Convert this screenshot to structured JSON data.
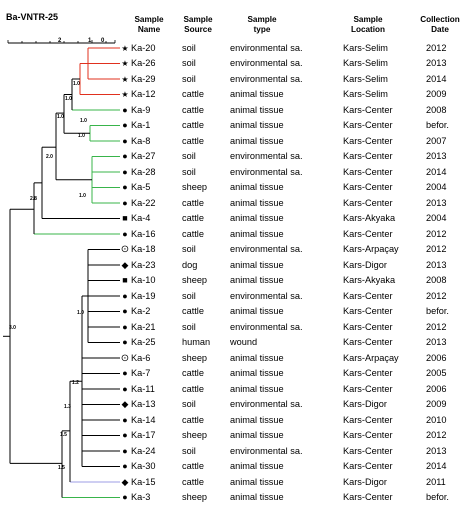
{
  "title": "Ba-VNTR-25",
  "scale": {
    "left": "2",
    "mid1": "1",
    "mid2": "0"
  },
  "headers": {
    "name": [
      "Sample",
      "Name"
    ],
    "source": [
      "Sample",
      "Source"
    ],
    "type": [
      "Sample",
      "type"
    ],
    "location": [
      "Sample",
      "Location"
    ],
    "date": [
      "Collection",
      "Date"
    ]
  },
  "node_labels": [
    "1.0",
    "1.0",
    "1.0",
    "1.0",
    "1.0",
    "1.0",
    "2.0",
    "2.8",
    "3.0",
    "1.0",
    "1.2",
    "1.3",
    "1.5",
    "1.5"
  ],
  "rows": [
    {
      "name": "Ka-20",
      "source": "soil",
      "type": "environmental sa.",
      "location": "Kars-Selim",
      "date": "2012",
      "marker": "star"
    },
    {
      "name": "Ka-26",
      "source": "soil",
      "type": "environmental sa.",
      "location": "Kars-Selim",
      "date": "2013",
      "marker": "star"
    },
    {
      "name": "Ka-29",
      "source": "soil",
      "type": "environmental sa.",
      "location": "Kars-Selim",
      "date": "2014",
      "marker": "star"
    },
    {
      "name": "Ka-12",
      "source": "cattle",
      "type": "animal tissue",
      "location": "Kars-Selim",
      "date": "2009",
      "marker": "star"
    },
    {
      "name": "Ka-9",
      "source": "cattle",
      "type": "animal tissue",
      "location": "Kars-Center",
      "date": "2008",
      "marker": "circle"
    },
    {
      "name": "Ka-1",
      "source": "cattle",
      "type": "animal tissue",
      "location": "Kars-Center",
      "date": "befor.",
      "marker": "circle"
    },
    {
      "name": "Ka-8",
      "source": "cattle",
      "type": "animal tissue",
      "location": "Kars-Center",
      "date": "2007",
      "marker": "circle"
    },
    {
      "name": "Ka-27",
      "source": "soil",
      "type": "environmental sa.",
      "location": "Kars-Center",
      "date": "2013",
      "marker": "circle"
    },
    {
      "name": "Ka-28",
      "source": "soil",
      "type": "environmental sa.",
      "location": "Kars-Center",
      "date": "2014",
      "marker": "circle"
    },
    {
      "name": "Ka-5",
      "source": "sheep",
      "type": "animal tissue",
      "location": "Kars-Center",
      "date": "2004",
      "marker": "circle"
    },
    {
      "name": "Ka-22",
      "source": "cattle",
      "type": "animal tissue",
      "location": "Kars-Center",
      "date": "2013",
      "marker": "circle"
    },
    {
      "name": "Ka-4",
      "source": "cattle",
      "type": "animal tissue",
      "location": "Kars-Akyaka",
      "date": "2004",
      "marker": "square"
    },
    {
      "name": "Ka-16",
      "source": "cattle",
      "type": "animal tissue",
      "location": "Kars-Center",
      "date": "2012",
      "marker": "circle"
    },
    {
      "name": "Ka-18",
      "source": "soil",
      "type": "environmental sa.",
      "location": "Kars-Arpaçay",
      "date": "2012",
      "marker": "circle-dot"
    },
    {
      "name": "Ka-23",
      "source": "dog",
      "type": "animal tissue",
      "location": "Kars-Digor",
      "date": "2013",
      "marker": "diamond"
    },
    {
      "name": "Ka-10",
      "source": "sheep",
      "type": "animal tissue",
      "location": "Kars-Akyaka",
      "date": "2008",
      "marker": "square"
    },
    {
      "name": "Ka-19",
      "source": "soil",
      "type": "environmental sa.",
      "location": "Kars-Center",
      "date": "2012",
      "marker": "circle"
    },
    {
      "name": "Ka-2",
      "source": "cattle",
      "type": "animal tissue",
      "location": "Kars-Center",
      "date": "befor.",
      "marker": "circle"
    },
    {
      "name": "Ka-21",
      "source": "soil",
      "type": "environmental sa.",
      "location": "Kars-Center",
      "date": "2012",
      "marker": "circle"
    },
    {
      "name": "Ka-25",
      "source": "human",
      "type": "wound",
      "location": "Kars-Center",
      "date": "2013",
      "marker": "circle"
    },
    {
      "name": "Ka-6",
      "source": "sheep",
      "type": "animal tissue",
      "location": "Kars-Arpaçay",
      "date": "2006",
      "marker": "circle-dot"
    },
    {
      "name": "Ka-7",
      "source": "cattle",
      "type": "animal tissue",
      "location": "Kars-Center",
      "date": "2005",
      "marker": "circle"
    },
    {
      "name": "Ka-11",
      "source": "cattle",
      "type": "animal tissue",
      "location": "Kars-Center",
      "date": "2006",
      "marker": "circle"
    },
    {
      "name": "Ka-13",
      "source": "soil",
      "type": "environmental sa.",
      "location": "Kars-Digor",
      "date": "2009",
      "marker": "diamond"
    },
    {
      "name": "Ka-14",
      "source": "cattle",
      "type": "animal tissue",
      "location": "Kars-Center",
      "date": "2010",
      "marker": "circle"
    },
    {
      "name": "Ka-17",
      "source": "sheep",
      "type": "animal tissue",
      "location": "Kars-Center",
      "date": "2012",
      "marker": "circle"
    },
    {
      "name": "Ka-24",
      "source": "soil",
      "type": "environmental sa.",
      "location": "Kars-Center",
      "date": "2013",
      "marker": "circle"
    },
    {
      "name": "Ka-30",
      "source": "cattle",
      "type": "animal tissue",
      "location": "Kars-Center",
      "date": "2014",
      "marker": "circle"
    },
    {
      "name": "Ka-15",
      "source": "cattle",
      "type": "animal tissue",
      "location": "Kars-Digor",
      "date": "2011",
      "marker": "diamond"
    },
    {
      "name": "Ka-3",
      "source": "sheep",
      "type": "animal tissue",
      "location": "Kars-Center",
      "date": "befor.",
      "marker": "circle"
    }
  ],
  "colors": {
    "black": "#000000",
    "red": "#e0301e",
    "green": "#38b44a",
    "lavender": "#9c9ce6"
  }
}
